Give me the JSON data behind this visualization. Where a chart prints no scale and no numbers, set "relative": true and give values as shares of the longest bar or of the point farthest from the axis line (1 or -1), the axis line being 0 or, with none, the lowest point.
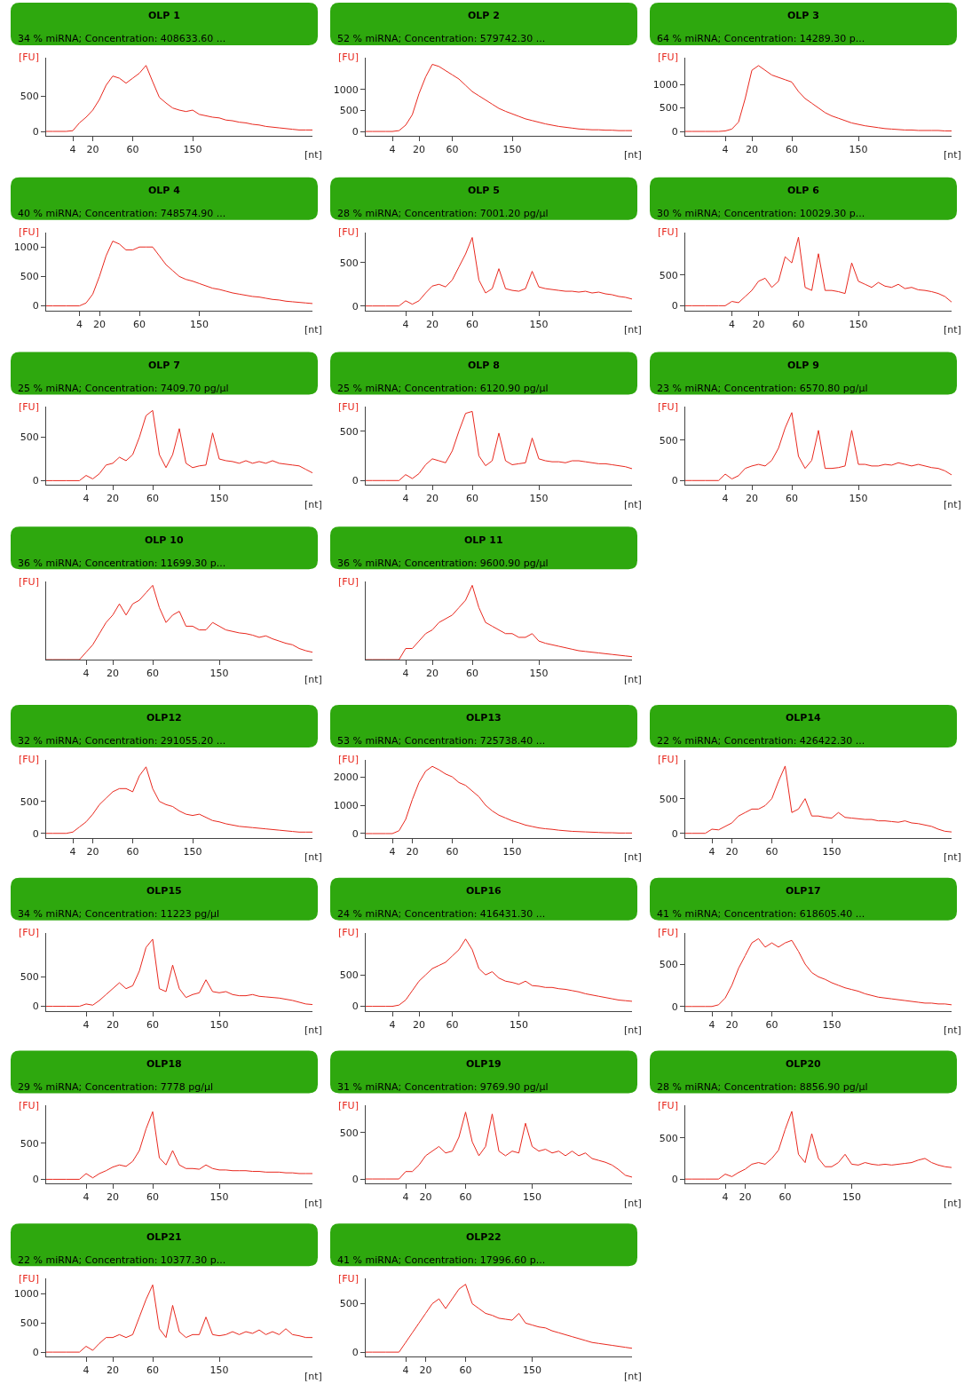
{
  "chart_data": [
    {
      "type": "line",
      "title": "OLP 1",
      "subtitle": "34 % miRNA; Concentration: 408633.60 ...",
      "xlabel": "[nt]",
      "ylabel": "[FU]",
      "ylim": [
        -60,
        1040
      ],
      "yticks": [
        0,
        500
      ],
      "categories": [
        null,
        null,
        null,
        null,
        "4",
        null,
        null,
        "20",
        null,
        null,
        null,
        null,
        null,
        "60",
        null,
        null,
        null,
        null,
        null,
        null,
        null,
        null,
        "150",
        null,
        null,
        null,
        null,
        null,
        null,
        null,
        null,
        null,
        null,
        null,
        null,
        null,
        null,
        null,
        null,
        null,
        null
      ],
      "series": [
        {
          "color": "#e8281e",
          "values": [
            0,
            0,
            0,
            0,
            10,
            120,
            200,
            300,
            450,
            650,
            780,
            750,
            680,
            750,
            820,
            930,
            700,
            480,
            400,
            330,
            300,
            280,
            300,
            240,
            220,
            200,
            190,
            160,
            150,
            130,
            120,
            100,
            90,
            70,
            60,
            50,
            40,
            30,
            20,
            20,
            20
          ]
        }
      ]
    },
    {
      "type": "line",
      "title": "OLP 2",
      "subtitle": "52 % miRNA; Concentration: 579742.30 ...",
      "xlabel": "[nt]",
      "ylabel": "[FU]",
      "ylim": [
        -100,
        1760
      ],
      "yticks": [
        0,
        500,
        1000
      ],
      "categories": [
        null,
        null,
        null,
        null,
        "4",
        null,
        null,
        null,
        "20",
        null,
        null,
        null,
        null,
        "60",
        null,
        null,
        null,
        null,
        null,
        null,
        null,
        null,
        "150",
        null,
        null,
        null,
        null,
        null,
        null,
        null,
        null,
        null,
        null,
        null,
        null,
        null,
        null,
        null,
        null,
        null,
        null
      ],
      "series": [
        {
          "color": "#e8281e",
          "values": [
            0,
            0,
            0,
            0,
            0,
            20,
            150,
            400,
            900,
            1300,
            1600,
            1550,
            1450,
            1350,
            1250,
            1100,
            950,
            850,
            750,
            650,
            550,
            480,
            420,
            360,
            300,
            260,
            220,
            180,
            150,
            120,
            100,
            80,
            60,
            50,
            40,
            40,
            30,
            30,
            20,
            20,
            20
          ]
        }
      ]
    },
    {
      "type": "line",
      "title": "OLP 3",
      "subtitle": "64 % miRNA; Concentration: 14289.30 p...",
      "xlabel": "[nt]",
      "ylabel": "[FU]",
      "ylim": [
        -90,
        1570
      ],
      "yticks": [
        0,
        500,
        1000
      ],
      "categories": [
        null,
        null,
        null,
        null,
        null,
        null,
        "4",
        null,
        null,
        null,
        "20",
        null,
        null,
        null,
        null,
        null,
        "60",
        null,
        null,
        null,
        null,
        null,
        null,
        null,
        null,
        null,
        "150",
        null,
        null,
        null,
        null,
        null,
        null,
        null,
        null,
        null,
        null,
        null,
        null,
        null,
        null
      ],
      "series": [
        {
          "color": "#e8281e",
          "values": [
            0,
            0,
            0,
            0,
            0,
            0,
            10,
            50,
            200,
            700,
            1300,
            1400,
            1300,
            1200,
            1150,
            1100,
            1050,
            850,
            700,
            600,
            500,
            400,
            330,
            280,
            230,
            180,
            150,
            120,
            100,
            80,
            60,
            50,
            40,
            30,
            30,
            20,
            20,
            20,
            20,
            10,
            10
          ]
        }
      ]
    },
    {
      "type": "line",
      "title": "OLP 4",
      "subtitle": "40 % miRNA; Concentration: 748574.90 ...",
      "xlabel": "[nt]",
      "ylabel": "[FU]",
      "ylim": [
        -75,
        1250
      ],
      "yticks": [
        0,
        500,
        1000
      ],
      "categories": [
        null,
        null,
        null,
        null,
        null,
        "4",
        null,
        null,
        "20",
        null,
        null,
        null,
        null,
        null,
        "60",
        null,
        null,
        null,
        null,
        null,
        null,
        null,
        null,
        "150",
        null,
        null,
        null,
        null,
        null,
        null,
        null,
        null,
        null,
        null,
        null,
        null,
        null,
        null,
        null,
        null,
        null
      ],
      "series": [
        {
          "color": "#e8281e",
          "values": [
            0,
            0,
            0,
            0,
            0,
            0,
            50,
            200,
            500,
            850,
            1100,
            1050,
            950,
            950,
            1000,
            1000,
            1000,
            850,
            700,
            600,
            500,
            450,
            420,
            380,
            340,
            300,
            280,
            250,
            220,
            200,
            180,
            160,
            150,
            130,
            110,
            100,
            80,
            70,
            60,
            50,
            40
          ]
        }
      ]
    },
    {
      "type": "line",
      "title": "OLP 5",
      "subtitle": "28 % miRNA; Concentration: 7001.20 pg/µl",
      "xlabel": "[nt]",
      "ylabel": "[FU]",
      "ylim": [
        -50,
        850
      ],
      "yticks": [
        0,
        500
      ],
      "categories": [
        null,
        null,
        null,
        null,
        null,
        null,
        "4",
        null,
        null,
        null,
        "20",
        null,
        null,
        null,
        null,
        null,
        "60",
        null,
        null,
        null,
        null,
        null,
        null,
        null,
        null,
        null,
        "150",
        null,
        null,
        null,
        null,
        null,
        null,
        null,
        null,
        null,
        null,
        null,
        null,
        null,
        null
      ],
      "series": [
        {
          "color": "#e8281e",
          "values": [
            0,
            0,
            0,
            0,
            0,
            0,
            60,
            20,
            60,
            150,
            230,
            250,
            220,
            300,
            450,
            600,
            790,
            300,
            150,
            200,
            430,
            200,
            180,
            170,
            200,
            400,
            220,
            200,
            190,
            180,
            170,
            170,
            160,
            170,
            150,
            160,
            140,
            130,
            110,
            100,
            80
          ]
        }
      ]
    },
    {
      "type": "line",
      "title": "OLP 6",
      "subtitle": "30 % miRNA; Concentration: 10029.30 p...",
      "xlabel": "[nt]",
      "ylabel": "[FU]",
      "ylim": [
        -75,
        1200
      ],
      "yticks": [
        0,
        500
      ],
      "categories": [
        null,
        null,
        null,
        null,
        null,
        null,
        null,
        "4",
        null,
        null,
        null,
        "20",
        null,
        null,
        null,
        null,
        null,
        "60",
        null,
        null,
        null,
        null,
        null,
        null,
        null,
        null,
        "150",
        null,
        null,
        null,
        null,
        null,
        null,
        null,
        null,
        null,
        null,
        null,
        null,
        null,
        null
      ],
      "series": [
        {
          "color": "#e8281e",
          "values": [
            0,
            0,
            0,
            0,
            0,
            0,
            0,
            70,
            50,
            150,
            250,
            400,
            450,
            300,
            400,
            800,
            700,
            1120,
            300,
            250,
            850,
            250,
            250,
            230,
            200,
            700,
            400,
            350,
            300,
            380,
            320,
            300,
            350,
            280,
            300,
            260,
            250,
            230,
            200,
            150,
            60
          ]
        }
      ]
    },
    {
      "type": "line",
      "title": "OLP 7",
      "subtitle": "25 % miRNA; Concentration: 7409.70 pg/µl",
      "xlabel": "[nt]",
      "ylabel": "[FU]",
      "ylim": [
        -50,
        850
      ],
      "yticks": [
        0,
        500
      ],
      "categories": [
        null,
        null,
        null,
        null,
        null,
        null,
        "4",
        null,
        null,
        null,
        "20",
        null,
        null,
        null,
        null,
        null,
        "60",
        null,
        null,
        null,
        null,
        null,
        null,
        null,
        null,
        null,
        "150",
        null,
        null,
        null,
        null,
        null,
        null,
        null,
        null,
        null,
        null,
        null,
        null,
        null,
        null
      ],
      "series": [
        {
          "color": "#e8281e",
          "values": [
            0,
            0,
            0,
            0,
            0,
            0,
            60,
            20,
            80,
            180,
            200,
            270,
            230,
            300,
            500,
            750,
            810,
            300,
            150,
            300,
            600,
            200,
            150,
            170,
            180,
            550,
            250,
            230,
            220,
            200,
            230,
            200,
            220,
            200,
            230,
            200,
            190,
            180,
            170,
            130,
            90
          ]
        }
      ]
    },
    {
      "type": "line",
      "title": "OLP 8",
      "subtitle": "25 % miRNA; Concentration: 6120.90 pg/µl",
      "xlabel": "[nt]",
      "ylabel": "[FU]",
      "ylim": [
        -45,
        745
      ],
      "yticks": [
        0,
        500
      ],
      "categories": [
        null,
        null,
        null,
        null,
        null,
        null,
        "4",
        null,
        null,
        null,
        "20",
        null,
        null,
        null,
        null,
        null,
        "60",
        null,
        null,
        null,
        null,
        null,
        null,
        null,
        null,
        null,
        "150",
        null,
        null,
        null,
        null,
        null,
        null,
        null,
        null,
        null,
        null,
        null,
        null,
        null,
        null
      ],
      "series": [
        {
          "color": "#e8281e",
          "values": [
            0,
            0,
            0,
            0,
            0,
            0,
            60,
            20,
            70,
            160,
            220,
            200,
            180,
            300,
            500,
            680,
            700,
            250,
            150,
            200,
            480,
            200,
            160,
            170,
            180,
            430,
            220,
            200,
            190,
            190,
            180,
            200,
            200,
            190,
            180,
            170,
            170,
            160,
            150,
            140,
            120
          ]
        }
      ]
    },
    {
      "type": "line",
      "title": "OLP 9",
      "subtitle": "23 % miRNA; Concentration: 6570.80 pg/µl",
      "xlabel": "[nt]",
      "ylabel": "[FU]",
      "ylim": [
        -55,
        910
      ],
      "yticks": [
        0,
        500
      ],
      "categories": [
        null,
        null,
        null,
        null,
        null,
        null,
        "4",
        null,
        null,
        null,
        "20",
        null,
        null,
        null,
        null,
        null,
        "60",
        null,
        null,
        null,
        null,
        null,
        null,
        null,
        null,
        null,
        "150",
        null,
        null,
        null,
        null,
        null,
        null,
        null,
        null,
        null,
        null,
        null,
        null,
        null,
        null
      ],
      "series": [
        {
          "color": "#e8281e",
          "values": [
            0,
            0,
            0,
            0,
            0,
            0,
            80,
            20,
            60,
            150,
            180,
            200,
            180,
            250,
            400,
            650,
            840,
            300,
            150,
            250,
            620,
            150,
            150,
            160,
            180,
            620,
            200,
            200,
            180,
            180,
            200,
            190,
            220,
            200,
            180,
            200,
            180,
            160,
            150,
            120,
            70
          ]
        }
      ]
    },
    {
      "type": "line",
      "title": "OLP 10",
      "subtitle": "36 % miRNA; Concentration: 11699.30 p...",
      "xlabel": "[nt]",
      "ylabel": "[FU]",
      "relative": true,
      "categories": [
        null,
        null,
        null,
        null,
        null,
        null,
        "4",
        null,
        null,
        null,
        "20",
        null,
        null,
        null,
        null,
        null,
        "60",
        null,
        null,
        null,
        null,
        null,
        null,
        null,
        null,
        null,
        "150",
        null,
        null,
        null,
        null,
        null,
        null,
        null,
        null,
        null,
        null,
        null,
        null,
        null,
        null
      ],
      "series": [
        {
          "color": "#e8281e",
          "values": [
            0,
            0,
            0,
            0,
            0,
            0,
            0.1,
            0.2,
            0.35,
            0.5,
            0.6,
            0.75,
            0.6,
            0.75,
            0.8,
            0.9,
            1,
            0.7,
            0.5,
            0.6,
            0.65,
            0.45,
            0.45,
            0.4,
            0.4,
            0.5,
            0.45,
            0.4,
            0.38,
            0.36,
            0.35,
            0.33,
            0.3,
            0.32,
            0.28,
            0.25,
            0.22,
            0.2,
            0.15,
            0.12,
            0.1
          ]
        }
      ]
    },
    {
      "type": "line",
      "title": "OLP 11",
      "subtitle": "36 % miRNA; Concentration: 9600.90 pg/µl",
      "xlabel": "[nt]",
      "ylabel": "[FU]",
      "relative": true,
      "categories": [
        null,
        null,
        null,
        null,
        null,
        null,
        "4",
        null,
        null,
        null,
        "20",
        null,
        null,
        null,
        null,
        null,
        "60",
        null,
        null,
        null,
        null,
        null,
        null,
        null,
        null,
        null,
        "150",
        null,
        null,
        null,
        null,
        null,
        null,
        null,
        null,
        null,
        null,
        null,
        null,
        null,
        null
      ],
      "series": [
        {
          "color": "#e8281e",
          "values": [
            0,
            0,
            0,
            0,
            0,
            0,
            0.15,
            0.15,
            0.25,
            0.35,
            0.4,
            0.5,
            0.55,
            0.6,
            0.7,
            0.8,
            1,
            0.7,
            0.5,
            0.45,
            0.4,
            0.35,
            0.35,
            0.3,
            0.3,
            0.35,
            0.25,
            0.22,
            0.2,
            0.18,
            0.16,
            0.14,
            0.12,
            0.11,
            0.1,
            0.09,
            0.08,
            0.07,
            0.06,
            0.05,
            0.04
          ]
        }
      ]
    },
    {
      "type": "line",
      "title": "OLP12",
      "subtitle": "32 % miRNA; Concentration: 291055.20 ...",
      "xlabel": "[nt]",
      "ylabel": "[FU]",
      "ylim": [
        -70,
        1150
      ],
      "yticks": [
        0,
        500
      ],
      "categories": [
        null,
        null,
        null,
        null,
        "4",
        null,
        null,
        "20",
        null,
        null,
        null,
        null,
        null,
        "60",
        null,
        null,
        null,
        null,
        null,
        null,
        null,
        null,
        "150",
        null,
        null,
        null,
        null,
        null,
        null,
        null,
        null,
        null,
        null,
        null,
        null,
        null,
        null,
        null,
        null,
        null,
        null
      ],
      "series": [
        {
          "color": "#e8281e",
          "values": [
            0,
            0,
            0,
            0,
            20,
            100,
            180,
            300,
            450,
            550,
            650,
            700,
            700,
            650,
            900,
            1040,
            700,
            500,
            450,
            420,
            350,
            300,
            280,
            300,
            250,
            200,
            180,
            150,
            130,
            110,
            100,
            90,
            80,
            70,
            60,
            50,
            40,
            30,
            20,
            20,
            20
          ]
        }
      ]
    },
    {
      "type": "line",
      "title": "OLP13",
      "subtitle": "53 % miRNA; Concentration: 725738.40 ...",
      "xlabel": "[nt]",
      "ylabel": "[FU]",
      "ylim": [
        -150,
        2600
      ],
      "yticks": [
        0,
        1000,
        2000
      ],
      "categories": [
        null,
        null,
        null,
        null,
        "4",
        null,
        null,
        "20",
        null,
        null,
        null,
        null,
        null,
        "60",
        null,
        null,
        null,
        null,
        null,
        null,
        null,
        null,
        "150",
        null,
        null,
        null,
        null,
        null,
        null,
        null,
        null,
        null,
        null,
        null,
        null,
        null,
        null,
        null,
        null,
        null,
        null
      ],
      "series": [
        {
          "color": "#e8281e",
          "values": [
            0,
            0,
            0,
            0,
            0,
            100,
            500,
            1200,
            1800,
            2200,
            2370,
            2250,
            2100,
            2000,
            1800,
            1700,
            1500,
            1300,
            1000,
            800,
            650,
            550,
            450,
            380,
            300,
            250,
            200,
            170,
            150,
            120,
            100,
            80,
            70,
            60,
            50,
            40,
            30,
            30,
            20,
            20,
            20
          ]
        }
      ]
    },
    {
      "type": "line",
      "title": "OLP14",
      "subtitle": "22 % miRNA; Concentration: 426422.30 ...",
      "xlabel": "[nt]",
      "ylabel": "[FU]",
      "ylim": [
        -65,
        1060
      ],
      "yticks": [
        0,
        500
      ],
      "categories": [
        null,
        null,
        null,
        null,
        "4",
        null,
        null,
        "20",
        null,
        null,
        null,
        null,
        null,
        "60",
        null,
        null,
        null,
        null,
        null,
        null,
        null,
        null,
        "150",
        null,
        null,
        null,
        null,
        null,
        null,
        null,
        null,
        null,
        null,
        null,
        null,
        null,
        null,
        null,
        null,
        null,
        null
      ],
      "series": [
        {
          "color": "#e8281e",
          "values": [
            0,
            0,
            0,
            0,
            60,
            50,
            100,
            150,
            250,
            300,
            350,
            350,
            400,
            500,
            750,
            970,
            300,
            350,
            500,
            250,
            250,
            230,
            220,
            300,
            230,
            220,
            210,
            200,
            200,
            180,
            180,
            170,
            160,
            180,
            150,
            140,
            120,
            100,
            60,
            30,
            20
          ]
        }
      ]
    },
    {
      "type": "line",
      "title": "OLP15",
      "subtitle": "34 % miRNA; Concentration: 11223 pg/µl",
      "xlabel": "[nt]",
      "ylabel": "[FU]",
      "ylim": [
        -75,
        1250
      ],
      "yticks": [
        0,
        500
      ],
      "categories": [
        null,
        null,
        null,
        null,
        null,
        null,
        "4",
        null,
        null,
        null,
        "20",
        null,
        null,
        null,
        null,
        null,
        "60",
        null,
        null,
        null,
        null,
        null,
        null,
        null,
        null,
        null,
        "150",
        null,
        null,
        null,
        null,
        null,
        null,
        null,
        null,
        null,
        null,
        null,
        null,
        null,
        null
      ],
      "series": [
        {
          "color": "#e8281e",
          "values": [
            0,
            0,
            0,
            0,
            0,
            0,
            40,
            20,
            100,
            200,
            300,
            400,
            300,
            350,
            600,
            1000,
            1140,
            300,
            250,
            700,
            300,
            150,
            200,
            230,
            450,
            250,
            230,
            250,
            200,
            180,
            180,
            200,
            170,
            160,
            150,
            140,
            120,
            100,
            70,
            40,
            30
          ]
        }
      ]
    },
    {
      "type": "line",
      "title": "OLP16",
      "subtitle": "24 % miRNA; Concentration: 416431.30 ...",
      "xlabel": "[nt]",
      "ylabel": "[FU]",
      "ylim": [
        -70,
        1170
      ],
      "yticks": [
        0,
        500
      ],
      "categories": [
        null,
        null,
        null,
        null,
        "4",
        null,
        null,
        null,
        "20",
        null,
        null,
        null,
        null,
        "60",
        null,
        null,
        null,
        null,
        null,
        null,
        null,
        null,
        null,
        "150",
        null,
        null,
        null,
        null,
        null,
        null,
        null,
        null,
        null,
        null,
        null,
        null,
        null,
        null,
        null,
        null,
        null
      ],
      "series": [
        {
          "color": "#e8281e",
          "values": [
            0,
            0,
            0,
            0,
            0,
            20,
            100,
            250,
            400,
            500,
            600,
            650,
            700,
            800,
            900,
            1070,
            900,
            600,
            500,
            550,
            450,
            400,
            380,
            350,
            400,
            330,
            320,
            300,
            300,
            280,
            270,
            250,
            230,
            200,
            180,
            160,
            140,
            120,
            100,
            90,
            80
          ]
        }
      ]
    },
    {
      "type": "line",
      "title": "OLP17",
      "subtitle": "41 % miRNA; Concentration: 618605.40 ...",
      "xlabel": "[nt]",
      "ylabel": "[FU]",
      "ylim": [
        -50,
        870
      ],
      "yticks": [
        0,
        500
      ],
      "categories": [
        null,
        null,
        null,
        null,
        "4",
        null,
        null,
        "20",
        null,
        null,
        null,
        null,
        null,
        "60",
        null,
        null,
        null,
        null,
        null,
        null,
        null,
        null,
        "150",
        null,
        null,
        null,
        null,
        null,
        null,
        null,
        null,
        null,
        null,
        null,
        null,
        null,
        null,
        null,
        null,
        null,
        null
      ],
      "series": [
        {
          "color": "#e8281e",
          "values": [
            0,
            0,
            0,
            0,
            0,
            20,
            100,
            250,
            450,
            600,
            750,
            800,
            700,
            750,
            700,
            750,
            780,
            650,
            500,
            400,
            350,
            320,
            280,
            250,
            220,
            200,
            180,
            150,
            130,
            110,
            100,
            90,
            80,
            70,
            60,
            50,
            40,
            40,
            30,
            30,
            20
          ]
        }
      ]
    },
    {
      "type": "line",
      "title": "OLP18",
      "subtitle": "29 % miRNA; Concentration: 7778 pg/µl",
      "xlabel": "[nt]",
      "ylabel": "[FU]",
      "ylim": [
        -60,
        1025
      ],
      "yticks": [
        0,
        500
      ],
      "categories": [
        null,
        null,
        null,
        null,
        null,
        null,
        "4",
        null,
        null,
        null,
        "20",
        null,
        null,
        null,
        null,
        null,
        "60",
        null,
        null,
        null,
        null,
        null,
        null,
        null,
        null,
        null,
        "150",
        null,
        null,
        null,
        null,
        null,
        null,
        null,
        null,
        null,
        null,
        null,
        null,
        null,
        null
      ],
      "series": [
        {
          "color": "#e8281e",
          "values": [
            0,
            0,
            0,
            0,
            0,
            0,
            80,
            20,
            80,
            120,
            170,
            200,
            180,
            250,
            400,
            700,
            940,
            300,
            200,
            400,
            200,
            150,
            150,
            140,
            200,
            150,
            130,
            130,
            120,
            120,
            120,
            110,
            110,
            100,
            100,
            100,
            90,
            90,
            80,
            80,
            80
          ]
        }
      ]
    },
    {
      "type": "line",
      "title": "OLP19",
      "subtitle": "31 % miRNA; Concentration: 9769.90 pg/µl",
      "xlabel": "[nt]",
      "ylabel": "[FU]",
      "ylim": [
        -50,
        790
      ],
      "yticks": [
        0,
        500
      ],
      "categories": [
        null,
        null,
        null,
        null,
        null,
        null,
        "4",
        null,
        null,
        "20",
        null,
        null,
        null,
        null,
        null,
        "60",
        null,
        null,
        null,
        null,
        null,
        null,
        null,
        null,
        null,
        "150",
        null,
        null,
        null,
        null,
        null,
        null,
        null,
        null,
        null,
        null,
        null,
        null,
        null,
        null,
        null
      ],
      "series": [
        {
          "color": "#e8281e",
          "values": [
            0,
            0,
            0,
            0,
            0,
            0,
            80,
            80,
            150,
            250,
            300,
            350,
            280,
            300,
            450,
            720,
            400,
            250,
            350,
            700,
            300,
            250,
            300,
            280,
            600,
            350,
            300,
            320,
            280,
            300,
            250,
            300,
            250,
            280,
            220,
            200,
            180,
            150,
            100,
            40,
            20
          ]
        }
      ]
    },
    {
      "type": "line",
      "title": "OLP20",
      "subtitle": "28 % miRNA; Concentration: 8856.90 pg/µl",
      "xlabel": "[nt]",
      "ylabel": "[FU]",
      "ylim": [
        -55,
        890
      ],
      "yticks": [
        0,
        500
      ],
      "categories": [
        null,
        null,
        null,
        null,
        null,
        null,
        "4",
        null,
        null,
        "20",
        null,
        null,
        null,
        null,
        null,
        "60",
        null,
        null,
        null,
        null,
        null,
        null,
        null,
        null,
        null,
        "150",
        null,
        null,
        null,
        null,
        null,
        null,
        null,
        null,
        null,
        null,
        null,
        null,
        null,
        null,
        null
      ],
      "series": [
        {
          "color": "#e8281e",
          "values": [
            0,
            0,
            0,
            0,
            0,
            0,
            60,
            30,
            80,
            120,
            180,
            200,
            180,
            250,
            350,
            600,
            820,
            300,
            200,
            550,
            250,
            150,
            150,
            200,
            300,
            180,
            170,
            200,
            180,
            170,
            180,
            170,
            180,
            190,
            200,
            230,
            250,
            200,
            170,
            150,
            140
          ]
        }
      ]
    },
    {
      "type": "line",
      "title": "OLP21",
      "subtitle": "22 % miRNA; Concentration: 10377.30 p...",
      "xlabel": "[nt]",
      "ylabel": "[FU]",
      "ylim": [
        -75,
        1260
      ],
      "yticks": [
        0,
        500,
        1000
      ],
      "categories": [
        null,
        null,
        null,
        null,
        null,
        null,
        "4",
        null,
        null,
        null,
        "20",
        null,
        null,
        null,
        null,
        null,
        "60",
        null,
        null,
        null,
        null,
        null,
        null,
        null,
        null,
        null,
        "150",
        null,
        null,
        null,
        null,
        null,
        null,
        null,
        null,
        null,
        null,
        null,
        null,
        null,
        null
      ],
      "series": [
        {
          "color": "#e8281e",
          "values": [
            0,
            0,
            0,
            0,
            0,
            0,
            100,
            30,
            150,
            250,
            250,
            300,
            250,
            300,
            600,
            900,
            1150,
            400,
            250,
            800,
            350,
            250,
            300,
            300,
            600,
            300,
            280,
            300,
            350,
            300,
            350,
            320,
            380,
            300,
            350,
            300,
            400,
            300,
            280,
            250,
            250
          ]
        }
      ]
    },
    {
      "type": "line",
      "title": "OLP22",
      "subtitle": "41 % miRNA; Concentration: 17996.60 p...",
      "xlabel": "[nt]",
      "ylabel": "[FU]",
      "ylim": [
        -45,
        760
      ],
      "yticks": [
        0,
        500
      ],
      "categories": [
        null,
        null,
        null,
        null,
        null,
        null,
        "4",
        null,
        null,
        "20",
        null,
        null,
        null,
        null,
        null,
        "60",
        null,
        null,
        null,
        null,
        null,
        null,
        null,
        null,
        null,
        "150",
        null,
        null,
        null,
        null,
        null,
        null,
        null,
        null,
        null,
        null,
        null,
        null,
        null,
        null,
        null
      ],
      "series": [
        {
          "color": "#e8281e",
          "values": [
            0,
            0,
            0,
            0,
            0,
            0,
            100,
            200,
            300,
            400,
            500,
            550,
            450,
            550,
            650,
            700,
            500,
            450,
            400,
            380,
            350,
            340,
            330,
            400,
            300,
            280,
            260,
            250,
            220,
            200,
            180,
            160,
            140,
            120,
            100,
            90,
            80,
            70,
            60,
            50,
            40
          ]
        }
      ]
    }
  ]
}
